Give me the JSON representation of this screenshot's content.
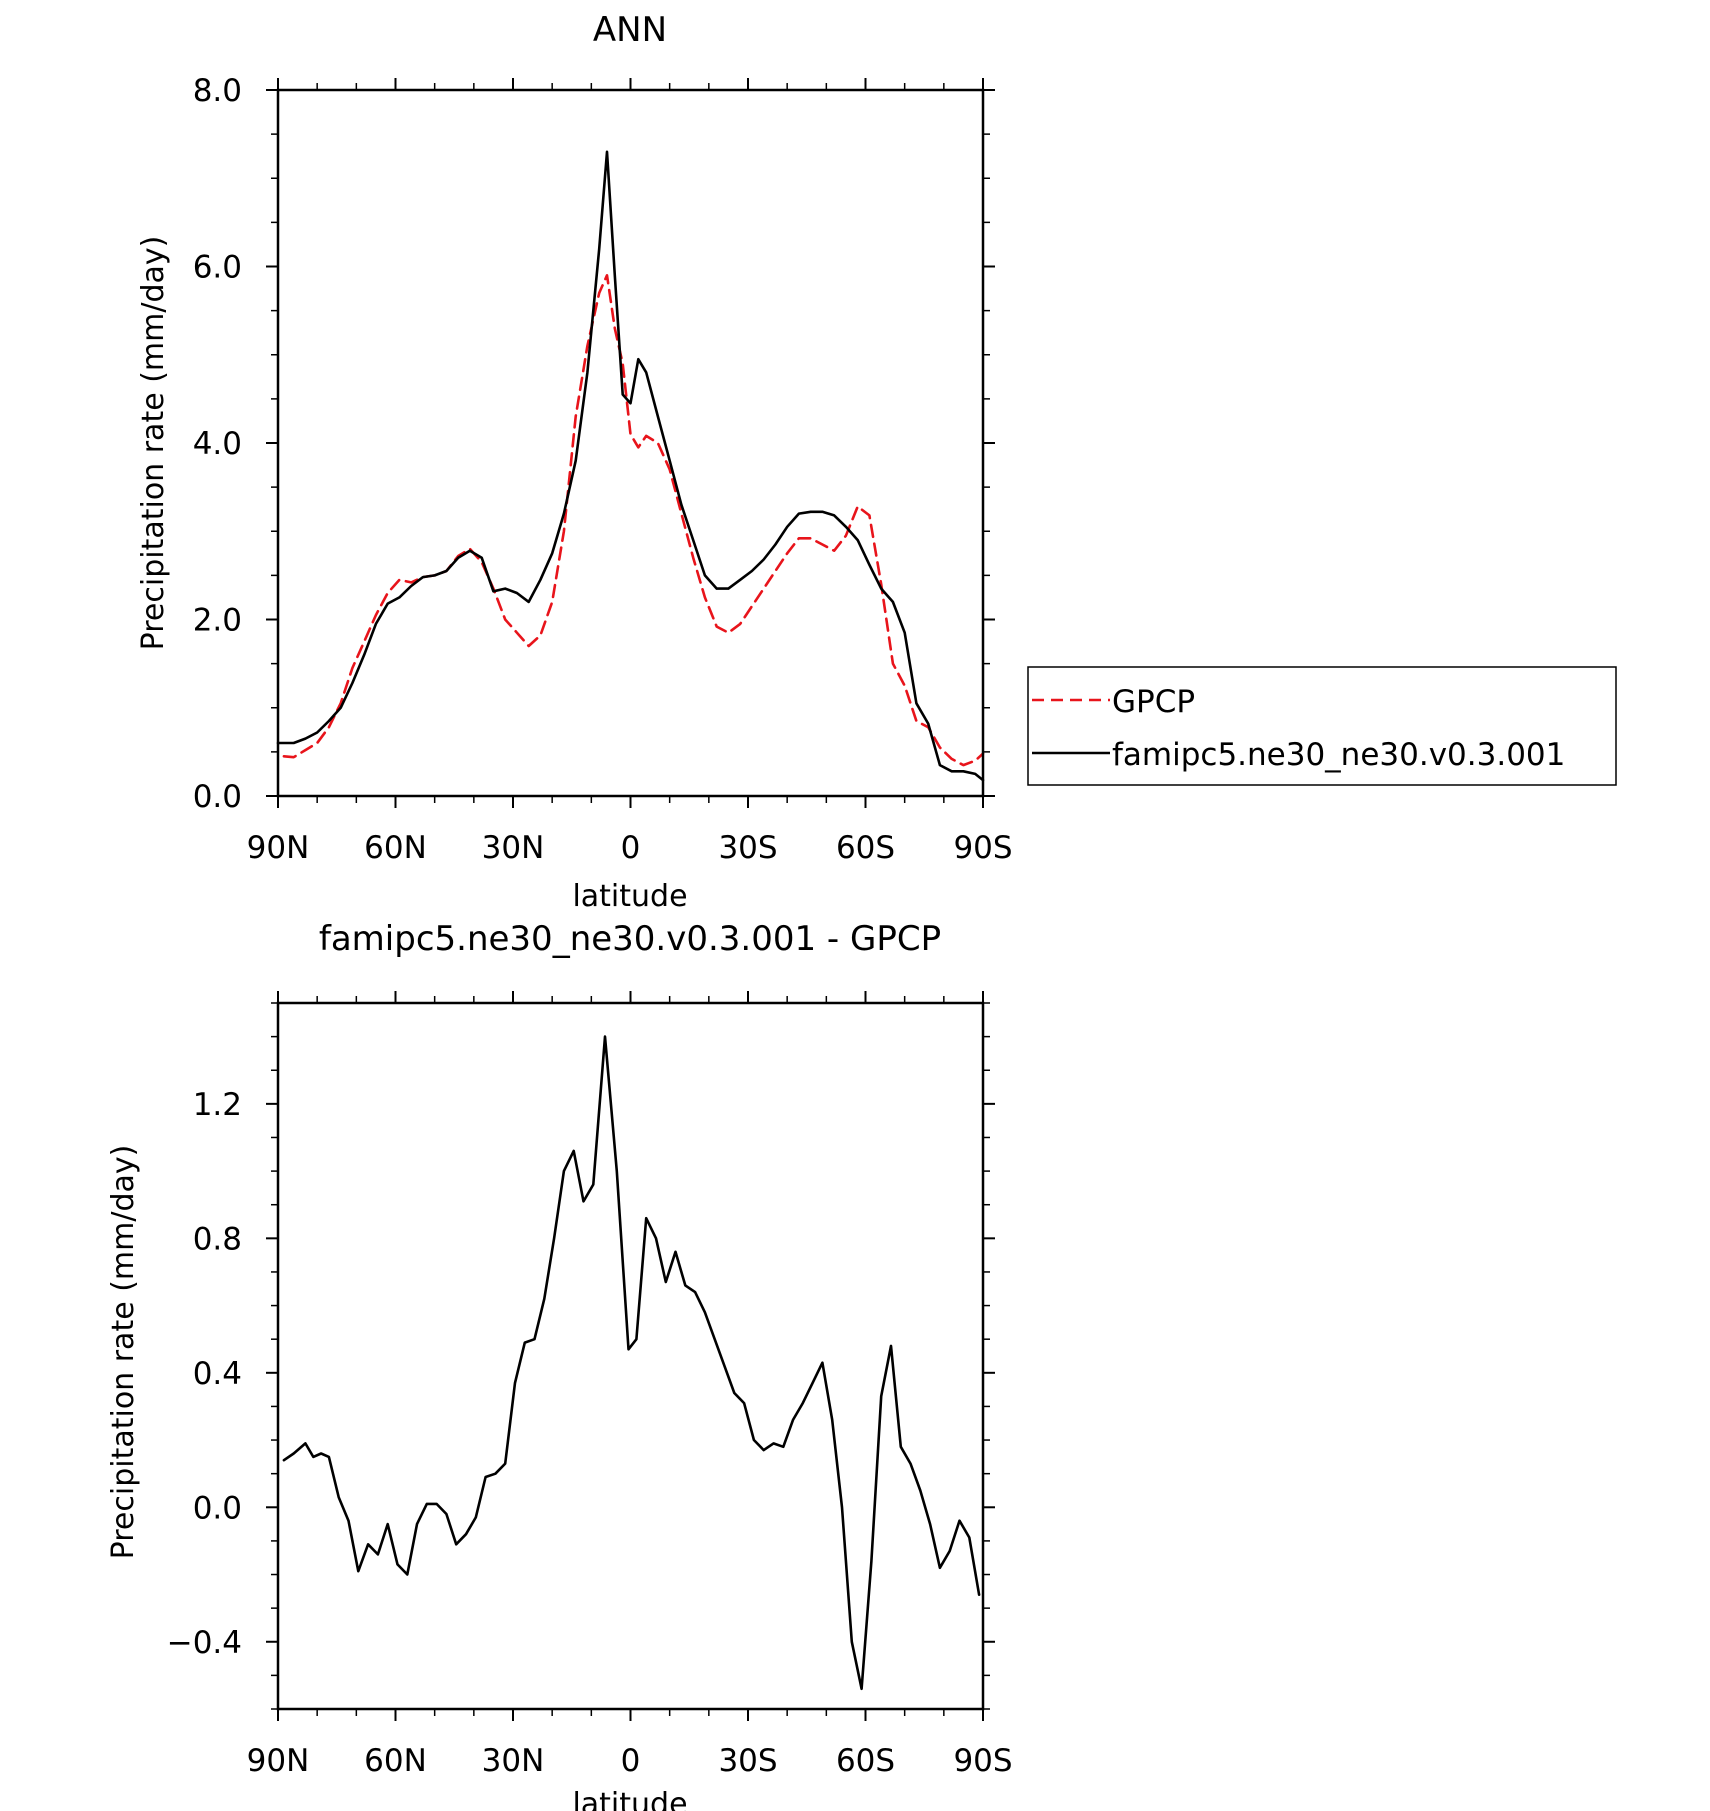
{
  "chart_data": [
    {
      "type": "line",
      "title": "ANN",
      "xlabel": "latitude",
      "ylabel": "Precipitation rate (mm/day)",
      "xlim": [
        90,
        -90
      ],
      "ylim": [
        0,
        8
      ],
      "xticks": [
        {
          "value": 90,
          "label": "90N"
        },
        {
          "value": 60,
          "label": "60N"
        },
        {
          "value": 30,
          "label": "30N"
        },
        {
          "value": 0,
          "label": "0"
        },
        {
          "value": -30,
          "label": "30S"
        },
        {
          "value": -60,
          "label": "60S"
        },
        {
          "value": -90,
          "label": "90S"
        }
      ],
      "yticks": [
        {
          "value": 0,
          "label": "0.0"
        },
        {
          "value": 2,
          "label": "2.0"
        },
        {
          "value": 4,
          "label": "4.0"
        },
        {
          "value": 6,
          "label": "6.0"
        },
        {
          "value": 8,
          "label": "8.0"
        }
      ],
      "legend": {
        "position": "right",
        "entries": [
          "GPCP",
          "famipc5.ne30_ne30.v0.3.001"
        ]
      },
      "series": [
        {
          "name": "GPCP",
          "color": "#e8141b",
          "dash": true,
          "points": [
            [
              88.5,
              0.45
            ],
            [
              86,
              0.44
            ],
            [
              83,
              0.52
            ],
            [
              80,
              0.6
            ],
            [
              77,
              0.78
            ],
            [
              74,
              1.05
            ],
            [
              71,
              1.45
            ],
            [
              68,
              1.75
            ],
            [
              65,
              2.05
            ],
            [
              62,
              2.3
            ],
            [
              59,
              2.45
            ],
            [
              56,
              2.42
            ],
            [
              53,
              2.48
            ],
            [
              50,
              2.5
            ],
            [
              47,
              2.55
            ],
            [
              44,
              2.72
            ],
            [
              41,
              2.8
            ],
            [
              38,
              2.65
            ],
            [
              35,
              2.35
            ],
            [
              32,
              2.0
            ],
            [
              29,
              1.85
            ],
            [
              26,
              1.7
            ],
            [
              23,
              1.82
            ],
            [
              20,
              2.2
            ],
            [
              17,
              3.0
            ],
            [
              14,
              4.3
            ],
            [
              11,
              5.1
            ],
            [
              8,
              5.7
            ],
            [
              6,
              5.9
            ],
            [
              4,
              5.3
            ],
            [
              2,
              4.9
            ],
            [
              0,
              4.1
            ],
            [
              -2,
              3.95
            ],
            [
              -4,
              4.08
            ],
            [
              -7,
              4.0
            ],
            [
              -10,
              3.7
            ],
            [
              -13,
              3.2
            ],
            [
              -16,
              2.7
            ],
            [
              -19,
              2.25
            ],
            [
              -22,
              1.92
            ],
            [
              -25,
              1.85
            ],
            [
              -28,
              1.95
            ],
            [
              -31,
              2.15
            ],
            [
              -34,
              2.35
            ],
            [
              -37,
              2.55
            ],
            [
              -40,
              2.75
            ],
            [
              -43,
              2.92
            ],
            [
              -46,
              2.92
            ],
            [
              -49,
              2.85
            ],
            [
              -52,
              2.78
            ],
            [
              -55,
              2.95
            ],
            [
              -58,
              3.28
            ],
            [
              -61,
              3.18
            ],
            [
              -64,
              2.4
            ],
            [
              -67,
              1.5
            ],
            [
              -70,
              1.25
            ],
            [
              -73,
              0.85
            ],
            [
              -76,
              0.78
            ],
            [
              -79,
              0.55
            ],
            [
              -82,
              0.42
            ],
            [
              -85,
              0.35
            ],
            [
              -88,
              0.4
            ],
            [
              -90,
              0.48
            ]
          ]
        },
        {
          "name": "famipc5.ne30_ne30.v0.3.001",
          "color": "#000000",
          "dash": false,
          "points": [
            [
              90,
              0.6
            ],
            [
              86,
              0.6
            ],
            [
              83,
              0.65
            ],
            [
              80,
              0.72
            ],
            [
              77,
              0.85
            ],
            [
              74,
              1.0
            ],
            [
              71,
              1.28
            ],
            [
              68,
              1.6
            ],
            [
              65,
              1.95
            ],
            [
              62,
              2.18
            ],
            [
              59,
              2.25
            ],
            [
              56,
              2.38
            ],
            [
              53,
              2.48
            ],
            [
              50,
              2.5
            ],
            [
              47,
              2.55
            ],
            [
              44,
              2.7
            ],
            [
              41,
              2.78
            ],
            [
              38,
              2.7
            ],
            [
              35,
              2.32
            ],
            [
              32,
              2.35
            ],
            [
              29,
              2.3
            ],
            [
              26,
              2.2
            ],
            [
              23,
              2.45
            ],
            [
              20,
              2.75
            ],
            [
              17,
              3.2
            ],
            [
              14,
              3.8
            ],
            [
              11,
              4.8
            ],
            [
              8,
              6.2
            ],
            [
              6,
              7.3
            ],
            [
              4,
              5.9
            ],
            [
              2,
              4.55
            ],
            [
              0,
              4.45
            ],
            [
              -2,
              4.95
            ],
            [
              -4,
              4.8
            ],
            [
              -7,
              4.3
            ],
            [
              -10,
              3.8
            ],
            [
              -13,
              3.3
            ],
            [
              -16,
              2.9
            ],
            [
              -19,
              2.5
            ],
            [
              -22,
              2.35
            ],
            [
              -25,
              2.35
            ],
            [
              -28,
              2.45
            ],
            [
              -31,
              2.55
            ],
            [
              -34,
              2.68
            ],
            [
              -37,
              2.85
            ],
            [
              -40,
              3.05
            ],
            [
              -43,
              3.2
            ],
            [
              -46,
              3.22
            ],
            [
              -49,
              3.22
            ],
            [
              -52,
              3.18
            ],
            [
              -55,
              3.05
            ],
            [
              -58,
              2.9
            ],
            [
              -61,
              2.62
            ],
            [
              -64,
              2.35
            ],
            [
              -67,
              2.2
            ],
            [
              -70,
              1.85
            ],
            [
              -73,
              1.05
            ],
            [
              -76,
              0.82
            ],
            [
              -79,
              0.35
            ],
            [
              -82,
              0.28
            ],
            [
              -85,
              0.28
            ],
            [
              -88,
              0.25
            ],
            [
              -90,
              0.18
            ]
          ]
        }
      ]
    },
    {
      "type": "line",
      "title": "famipc5.ne30_ne30.v0.3.001 - GPCP",
      "xlabel": "latitude",
      "ylabel": "Precipitation rate (mm/day)",
      "xlim": [
        90,
        -90
      ],
      "ylim": [
        -0.6,
        1.5
      ],
      "xticks": [
        {
          "value": 90,
          "label": "90N"
        },
        {
          "value": 60,
          "label": "60N"
        },
        {
          "value": 30,
          "label": "30N"
        },
        {
          "value": 0,
          "label": "0"
        },
        {
          "value": -30,
          "label": "30S"
        },
        {
          "value": -60,
          "label": "60S"
        },
        {
          "value": -90,
          "label": "90S"
        }
      ],
      "yticks": [
        {
          "value": -0.4,
          "label": "−0.4"
        },
        {
          "value": 0.0,
          "label": "0.0"
        },
        {
          "value": 0.4,
          "label": "0.4"
        },
        {
          "value": 0.8,
          "label": "0.8"
        },
        {
          "value": 1.2,
          "label": "1.2"
        }
      ],
      "series": [
        {
          "name": "famipc5.ne30_ne30.v0.3.001 - GPCP",
          "color": "#000000",
          "dash": false,
          "points": [
            [
              88.5,
              0.14
            ],
            [
              86,
              0.16
            ],
            [
              83,
              0.19
            ],
            [
              81,
              0.15
            ],
            [
              79,
              0.16
            ],
            [
              77,
              0.15
            ],
            [
              74.5,
              0.03
            ],
            [
              72,
              -0.04
            ],
            [
              69.5,
              -0.19
            ],
            [
              67,
              -0.11
            ],
            [
              64.5,
              -0.14
            ],
            [
              62,
              -0.05
            ],
            [
              59.5,
              -0.17
            ],
            [
              57,
              -0.2
            ],
            [
              54.5,
              -0.05
            ],
            [
              52,
              0.01
            ],
            [
              49.5,
              0.01
            ],
            [
              47,
              -0.02
            ],
            [
              44.5,
              -0.11
            ],
            [
              42,
              -0.08
            ],
            [
              39.5,
              -0.03
            ],
            [
              37,
              0.09
            ],
            [
              34.5,
              0.1
            ],
            [
              32,
              0.13
            ],
            [
              29.5,
              0.37
            ],
            [
              27,
              0.49
            ],
            [
              24.5,
              0.5
            ],
            [
              22,
              0.62
            ],
            [
              19.5,
              0.8
            ],
            [
              17,
              1.0
            ],
            [
              14.5,
              1.06
            ],
            [
              12,
              0.91
            ],
            [
              9.5,
              0.96
            ],
            [
              6.5,
              1.4
            ],
            [
              3.5,
              1.0
            ],
            [
              0.5,
              0.47
            ],
            [
              -1.5,
              0.5
            ],
            [
              -4,
              0.86
            ],
            [
              -6.5,
              0.8
            ],
            [
              -9,
              0.67
            ],
            [
              -11.5,
              0.76
            ],
            [
              -14,
              0.66
            ],
            [
              -16.5,
              0.64
            ],
            [
              -19,
              0.58
            ],
            [
              -21.5,
              0.5
            ],
            [
              -24,
              0.42
            ],
            [
              -26.5,
              0.34
            ],
            [
              -29,
              0.31
            ],
            [
              -31.5,
              0.2
            ],
            [
              -34,
              0.17
            ],
            [
              -36.5,
              0.19
            ],
            [
              -39,
              0.18
            ],
            [
              -41.5,
              0.26
            ],
            [
              -44,
              0.31
            ],
            [
              -46.5,
              0.37
            ],
            [
              -49,
              0.43
            ],
            [
              -51.5,
              0.26
            ],
            [
              -54,
              0.0
            ],
            [
              -56.5,
              -0.4
            ],
            [
              -59,
              -0.54
            ],
            [
              -61.5,
              -0.16
            ],
            [
              -64,
              0.33
            ],
            [
              -66.5,
              0.48
            ],
            [
              -69,
              0.18
            ],
            [
              -71.5,
              0.13
            ],
            [
              -74,
              0.05
            ],
            [
              -76.5,
              -0.05
            ],
            [
              -79,
              -0.18
            ],
            [
              -81.5,
              -0.13
            ],
            [
              -84,
              -0.04
            ],
            [
              -86.5,
              -0.09
            ],
            [
              -89,
              -0.26
            ]
          ]
        }
      ]
    }
  ]
}
